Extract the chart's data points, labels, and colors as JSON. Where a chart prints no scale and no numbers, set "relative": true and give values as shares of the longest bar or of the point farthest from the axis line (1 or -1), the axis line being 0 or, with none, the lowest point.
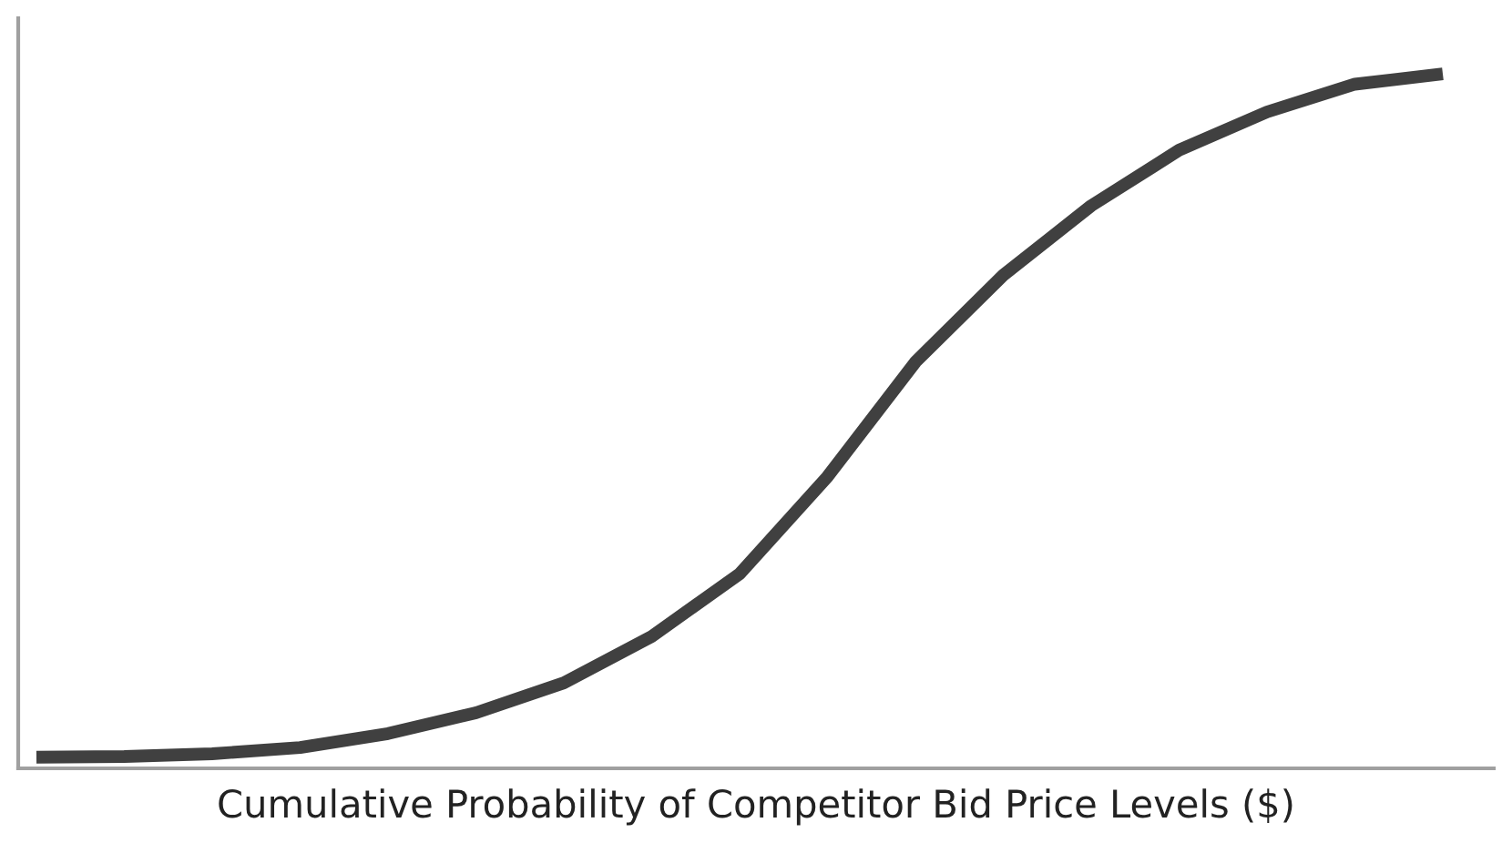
{
  "chart_data": {
    "type": "line",
    "relative": true,
    "xlabel": "Cumulative Probability of Competitor Bid Price Levels ($)",
    "categories": [
      null,
      null,
      null,
      null,
      null,
      null,
      null,
      null,
      null,
      null,
      null,
      null,
      null,
      null,
      null,
      null,
      null
    ],
    "series": [
      {
        "color": "#404040",
        "values": [
          0.016,
          0.017,
          0.021,
          0.03,
          0.05,
          0.08,
          0.123,
          0.19,
          0.28,
          0.42,
          0.585,
          0.71,
          0.81,
          0.89,
          0.945,
          0.985,
          1
        ]
      }
    ],
    "marker": "none",
    "line_style": "solid",
    "tick_labels": false
  }
}
